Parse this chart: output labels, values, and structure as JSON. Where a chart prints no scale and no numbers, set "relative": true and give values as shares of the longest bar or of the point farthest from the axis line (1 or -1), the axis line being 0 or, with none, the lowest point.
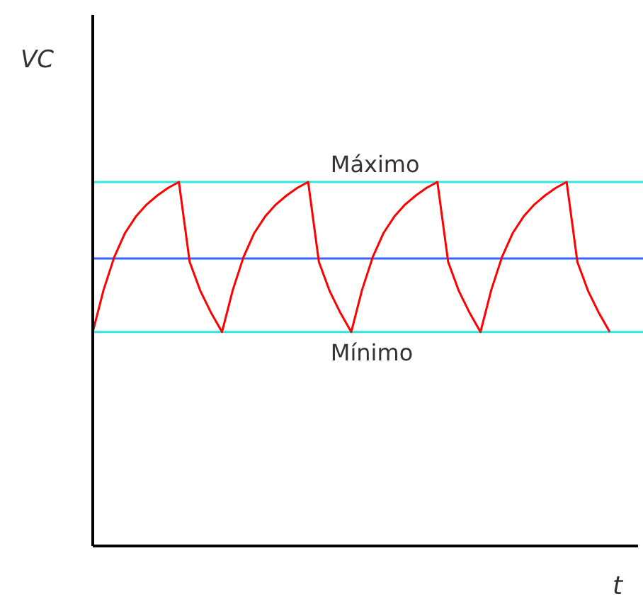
{
  "chart_data": {
    "type": "line",
    "relative": true,
    "xlabel": "t",
    "ylabel": "VC",
    "grid": false,
    "categories": [
      null,
      null,
      null,
      null,
      null,
      null,
      null,
      null,
      null,
      null,
      null,
      null,
      null,
      null,
      null,
      null,
      null,
      null,
      null,
      null,
      null,
      null,
      null,
      null,
      null,
      null,
      null,
      null,
      null,
      null,
      null,
      null,
      null,
      null,
      null,
      null,
      null,
      null,
      null,
      null,
      null,
      null,
      null,
      null,
      null,
      null,
      null,
      null,
      null
    ],
    "series": [
      {
        "color": "#ff0000",
        "values": [
          0.588,
          0.703,
          0.794,
          0.86,
          0.905,
          0.938,
          0.963,
          0.984,
          1.0,
          0.78,
          0.7,
          0.64,
          0.588,
          0.703,
          0.794,
          0.86,
          0.905,
          0.938,
          0.963,
          0.984,
          1.0,
          0.78,
          0.7,
          0.64,
          0.588,
          0.703,
          0.794,
          0.86,
          0.905,
          0.938,
          0.963,
          0.984,
          1.0,
          0.78,
          0.7,
          0.64,
          0.588,
          0.703,
          0.794,
          0.86,
          0.905,
          0.938,
          0.963,
          0.984,
          1.0,
          0.78,
          0.7,
          0.64,
          0.588
        ]
      }
    ],
    "ref_lines": [
      {
        "axis": "y",
        "value": 1.0,
        "label": "Máximo",
        "color": "#33e6e6"
      },
      {
        "axis": "y",
        "value": 0.79,
        "label": null,
        "color": "#3366ff"
      },
      {
        "axis": "y",
        "value": 0.588,
        "label": "Mínimo",
        "color": "#33e6e6"
      }
    ]
  }
}
